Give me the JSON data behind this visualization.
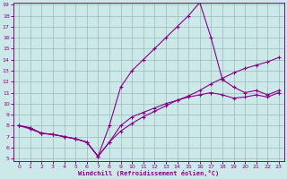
{
  "xlabel": "Windchill (Refroidissement éolien,°C)",
  "bg_color": "#cce8e8",
  "line_color": "#880088",
  "grid_color": "#99bbbb",
  "xmin": 0,
  "xmax": 23,
  "ymin": 5,
  "ymax": 19,
  "hours": [
    0,
    1,
    2,
    3,
    4,
    5,
    6,
    7,
    8,
    9,
    10,
    11,
    12,
    13,
    14,
    15,
    16,
    17,
    18,
    19,
    20,
    21,
    22,
    23
  ],
  "line1": [
    8.0,
    7.8,
    7.3,
    7.2,
    7.0,
    6.8,
    6.5,
    5.2,
    6.5,
    8.0,
    8.8,
    9.2,
    9.6,
    10.0,
    10.3,
    10.6,
    10.8,
    11.0,
    10.8,
    10.5,
    10.6,
    10.8,
    10.6,
    11.0
  ],
  "line2": [
    8.0,
    7.8,
    7.3,
    7.2,
    7.0,
    6.8,
    6.5,
    5.2,
    8.0,
    11.5,
    13.0,
    14.0,
    15.0,
    16.0,
    17.0,
    18.0,
    19.2,
    16.0,
    12.2,
    11.5,
    11.0,
    11.2,
    10.8,
    11.2
  ],
  "line3": [
    8.0,
    7.7,
    7.3,
    7.2,
    7.0,
    6.8,
    6.5,
    5.2,
    6.5,
    7.5,
    8.2,
    8.8,
    9.3,
    9.8,
    10.3,
    10.7,
    11.2,
    11.8,
    12.3,
    12.8,
    13.2,
    13.5,
    13.8,
    14.2
  ]
}
